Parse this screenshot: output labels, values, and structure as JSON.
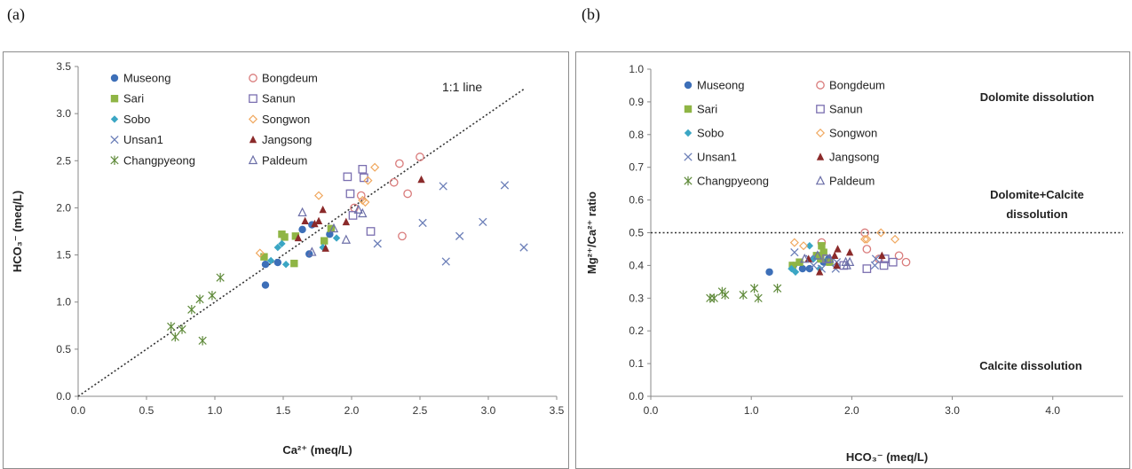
{
  "figure": {
    "panel_a_label": "(a)",
    "panel_b_label": "(b)"
  },
  "chart_data": [
    {
      "type": "scatter",
      "xlabel": "Ca²⁺ (meq/L)",
      "ylabel": "HCO₃⁻ (meq/L)",
      "xlim": [
        0,
        3.5
      ],
      "ylim": [
        0,
        3.5
      ],
      "x_ticks": [
        "0.0",
        "0.5",
        "1.0",
        "1.5",
        "2.0",
        "2.5",
        "3.0",
        "3.5"
      ],
      "y_ticks": [
        "0.0",
        "0.5",
        "1.0",
        "1.5",
        "2.0",
        "2.5",
        "3.0",
        "3.5"
      ],
      "grid": false,
      "legend": "top-left, two columns",
      "reference_line": {
        "label": "1:1 line",
        "slope": 1,
        "intercept": 0,
        "style": "dotted",
        "x_range": [
          0,
          3.27
        ]
      },
      "series": [
        {
          "name": "Museong",
          "marker": "circle-filled",
          "color": "#3d6fb8",
          "points": [
            [
              1.37,
              1.4
            ],
            [
              1.37,
              1.18
            ],
            [
              1.46,
              1.42
            ],
            [
              1.64,
              1.77
            ],
            [
              1.69,
              1.51
            ],
            [
              1.71,
              1.82
            ],
            [
              1.84,
              1.72
            ]
          ]
        },
        {
          "name": "Bongdeum",
          "marker": "circle-open",
          "color": "#d97b7b",
          "points": [
            [
              2.02,
              2.0
            ],
            [
              2.07,
              2.13
            ],
            [
              2.31,
              2.27
            ],
            [
              2.35,
              2.47
            ],
            [
              2.37,
              1.7
            ],
            [
              2.41,
              2.15
            ],
            [
              2.5,
              2.54
            ]
          ]
        },
        {
          "name": "Sari",
          "marker": "square-filled",
          "color": "#8fb545",
          "points": [
            [
              1.36,
              1.48
            ],
            [
              1.49,
              1.72
            ],
            [
              1.51,
              1.69
            ],
            [
              1.58,
              1.41
            ],
            [
              1.59,
              1.7
            ],
            [
              1.8,
              1.65
            ],
            [
              1.85,
              1.78
            ]
          ]
        },
        {
          "name": "Sanun",
          "marker": "square-open",
          "color": "#7b6fb0",
          "points": [
            [
              1.97,
              2.33
            ],
            [
              1.99,
              2.15
            ],
            [
              2.01,
              1.92
            ],
            [
              2.08,
              2.41
            ],
            [
              2.09,
              2.32
            ],
            [
              2.14,
              1.75
            ]
          ]
        },
        {
          "name": "Sobo",
          "marker": "diamond-filled",
          "color": "#3ba6c4",
          "points": [
            [
              1.41,
              1.44
            ],
            [
              1.46,
              1.58
            ],
            [
              1.49,
              1.62
            ],
            [
              1.52,
              1.4
            ],
            [
              1.79,
              1.58
            ],
            [
              1.89,
              1.68
            ]
          ]
        },
        {
          "name": "Songwon",
          "marker": "diamond-open",
          "color": "#f0a85f",
          "points": [
            [
              1.33,
              1.52
            ],
            [
              1.76,
              2.13
            ],
            [
              2.08,
              2.08
            ],
            [
              2.1,
              2.06
            ],
            [
              2.12,
              2.29
            ],
            [
              2.17,
              2.43
            ]
          ]
        },
        {
          "name": "Unsan1",
          "marker": "x",
          "color": "#6c7fb8",
          "points": [
            [
              2.19,
              1.62
            ],
            [
              2.52,
              1.84
            ],
            [
              2.67,
              2.23
            ],
            [
              2.69,
              1.43
            ],
            [
              2.79,
              1.7
            ],
            [
              2.96,
              1.85
            ],
            [
              3.12,
              2.24
            ],
            [
              3.26,
              1.58
            ]
          ]
        },
        {
          "name": "Jangsong",
          "marker": "triangle-filled",
          "color": "#8b2a2a",
          "points": [
            [
              1.61,
              1.68
            ],
            [
              1.66,
              1.86
            ],
            [
              1.73,
              1.83
            ],
            [
              1.76,
              1.86
            ],
            [
              1.79,
              1.98
            ],
            [
              1.81,
              1.57
            ],
            [
              1.96,
              1.85
            ],
            [
              2.51,
              2.3
            ]
          ]
        },
        {
          "name": "Changpyeong",
          "marker": "asterisk",
          "color": "#5f8a3a",
          "points": [
            [
              0.68,
              0.74
            ],
            [
              0.71,
              0.63
            ],
            [
              0.76,
              0.71
            ],
            [
              0.83,
              0.92
            ],
            [
              0.89,
              1.03
            ],
            [
              0.91,
              0.59
            ],
            [
              0.98,
              1.07
            ],
            [
              1.04,
              1.26
            ]
          ]
        },
        {
          "name": "Paldeum",
          "marker": "triangle-open",
          "color": "#6c6fa8",
          "points": [
            [
              1.64,
              1.95
            ],
            [
              1.71,
              1.53
            ],
            [
              1.87,
              1.78
            ],
            [
              1.96,
              1.66
            ],
            [
              2.05,
              1.98
            ],
            [
              2.08,
              1.94
            ]
          ]
        }
      ]
    },
    {
      "type": "scatter",
      "xlabel": "HCO₃⁻ (meq/L)",
      "ylabel": "Mg²⁺/Ca²⁺ ratio",
      "xlim": [
        0,
        4.7
      ],
      "ylim": [
        0,
        1.0
      ],
      "x_ticks": [
        "0.0",
        "1.0",
        "2.0",
        "3.0",
        "4.0"
      ],
      "y_ticks": [
        "0.0",
        "0.1",
        "0.2",
        "0.3",
        "0.4",
        "0.5",
        "0.6",
        "0.7",
        "0.8",
        "0.9",
        "1.0"
      ],
      "grid": false,
      "legend": "top-left, two columns",
      "reference_line": {
        "label": "",
        "y": 0.5,
        "style": "dotted"
      },
      "annotations": [
        "Dolomite dissolution",
        "Dolomite+Calcite",
        "dissolution",
        "Calcite dissolution"
      ],
      "series": [
        {
          "name": "Museong",
          "marker": "circle-filled",
          "color": "#3d6fb8",
          "points": [
            [
              1.18,
              0.38
            ],
            [
              1.42,
              0.4
            ],
            [
              1.51,
              0.39
            ],
            [
              1.58,
              0.39
            ],
            [
              1.72,
              0.41
            ],
            [
              1.77,
              0.42
            ]
          ]
        },
        {
          "name": "Bongdeum",
          "marker": "circle-open",
          "color": "#d97b7b",
          "points": [
            [
              1.7,
              0.47
            ],
            [
              2.13,
              0.5
            ],
            [
              2.15,
              0.45
            ],
            [
              2.27,
              0.42
            ],
            [
              2.47,
              0.43
            ],
            [
              2.54,
              0.41
            ]
          ]
        },
        {
          "name": "Sari",
          "marker": "square-filled",
          "color": "#8fb545",
          "points": [
            [
              1.41,
              0.4
            ],
            [
              1.48,
              0.41
            ],
            [
              1.65,
              0.43
            ],
            [
              1.69,
              0.42
            ],
            [
              1.7,
              0.46
            ],
            [
              1.72,
              0.44
            ],
            [
              1.78,
              0.41
            ]
          ]
        },
        {
          "name": "Sanun",
          "marker": "square-open",
          "color": "#7b6fb0",
          "points": [
            [
              1.75,
              0.42
            ],
            [
              1.92,
              0.4
            ],
            [
              2.15,
              0.39
            ],
            [
              2.32,
              0.4
            ],
            [
              2.33,
              0.42
            ],
            [
              2.41,
              0.41
            ]
          ]
        },
        {
          "name": "Sobo",
          "marker": "diamond-filled",
          "color": "#3ba6c4",
          "points": [
            [
              1.4,
              0.39
            ],
            [
              1.44,
              0.38
            ],
            [
              1.58,
              0.46
            ],
            [
              1.62,
              0.42
            ],
            [
              1.68,
              0.39
            ]
          ]
        },
        {
          "name": "Songwon",
          "marker": "diamond-open",
          "color": "#f0a85f",
          "points": [
            [
              1.43,
              0.47
            ],
            [
              1.52,
              0.46
            ],
            [
              2.13,
              0.48
            ],
            [
              2.15,
              0.48
            ],
            [
              2.29,
              0.5
            ],
            [
              2.43,
              0.48
            ]
          ]
        },
        {
          "name": "Unsan1",
          "marker": "x",
          "color": "#6c7fb8",
          "points": [
            [
              1.43,
              0.44
            ],
            [
              1.58,
              0.42
            ],
            [
              1.62,
              0.4
            ],
            [
              1.7,
              0.39
            ],
            [
              1.84,
              0.39
            ],
            [
              1.85,
              0.41
            ],
            [
              2.23,
              0.4
            ],
            [
              2.24,
              0.42
            ]
          ]
        },
        {
          "name": "Jangsong",
          "marker": "triangle-filled",
          "color": "#8b2a2a",
          "points": [
            [
              1.57,
              0.42
            ],
            [
              1.68,
              0.38
            ],
            [
              1.83,
              0.43
            ],
            [
              1.85,
              0.4
            ],
            [
              1.86,
              0.45
            ],
            [
              1.98,
              0.44
            ],
            [
              2.3,
              0.43
            ]
          ]
        },
        {
          "name": "Changpyeong",
          "marker": "asterisk",
          "color": "#5f8a3a",
          "points": [
            [
              0.59,
              0.3
            ],
            [
              0.63,
              0.3
            ],
            [
              0.71,
              0.32
            ],
            [
              0.74,
              0.31
            ],
            [
              0.92,
              0.31
            ],
            [
              1.03,
              0.33
            ],
            [
              1.07,
              0.3
            ],
            [
              1.26,
              0.33
            ]
          ]
        },
        {
          "name": "Paldeum",
          "marker": "triangle-open",
          "color": "#6c6fa8",
          "points": [
            [
              1.53,
              0.42
            ],
            [
              1.66,
              0.43
            ],
            [
              1.78,
              0.42
            ],
            [
              1.94,
              0.41
            ],
            [
              1.95,
              0.4
            ],
            [
              1.98,
              0.41
            ]
          ]
        }
      ]
    }
  ]
}
